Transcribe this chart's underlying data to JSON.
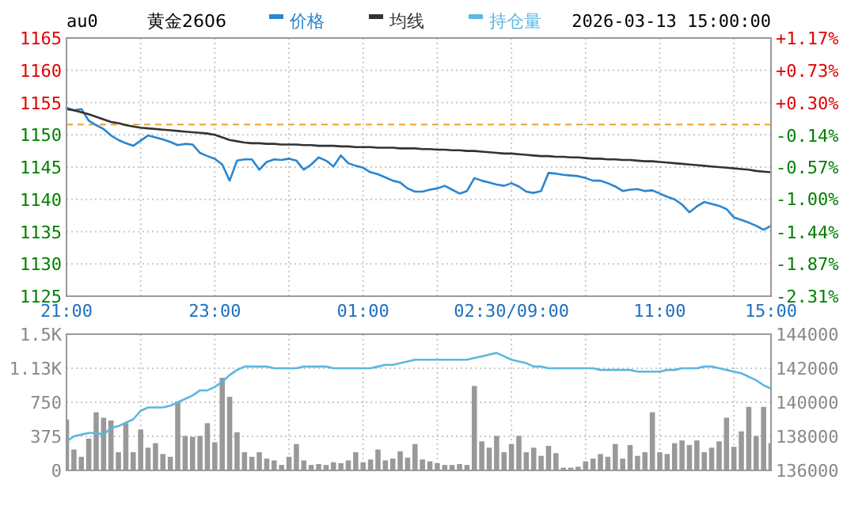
{
  "chart_data": [
    {
      "type": "line",
      "title": "黄金2606",
      "annotations": [
        "au0",
        "2026-03-13 15:00:00"
      ],
      "legend": "top",
      "grid": true,
      "categories": [
        "21:00",
        null,
        null,
        null,
        null,
        null,
        null,
        null,
        null,
        null,
        null,
        null,
        null,
        null,
        null,
        null,
        null,
        null,
        null,
        null,
        "23:00",
        null,
        null,
        null,
        null,
        null,
        null,
        null,
        null,
        null,
        null,
        null,
        null,
        null,
        null,
        null,
        null,
        null,
        null,
        null,
        "01:00",
        null,
        null,
        null,
        null,
        null,
        null,
        null,
        null,
        null,
        null,
        null,
        null,
        null,
        null,
        null,
        null,
        null,
        null,
        null,
        "02:30/09:00",
        null,
        null,
        null,
        null,
        null,
        null,
        null,
        null,
        null,
        null,
        null,
        null,
        null,
        null,
        null,
        null,
        null,
        null,
        null,
        "11:00",
        null,
        null,
        null,
        null,
        null,
        null,
        null,
        null,
        null,
        null,
        null,
        null,
        null,
        null,
        "15:00"
      ],
      "ylim": [
        1125,
        1165
      ],
      "yticks": [
        1125,
        1130,
        1135,
        1140,
        1145,
        1150,
        1155,
        1160,
        1165
      ],
      "y2lim": [
        -2.31,
        1.17
      ],
      "y2ticks": [
        {
          "value": -2.31,
          "label": "-2.31%"
        },
        {
          "value": -1.87,
          "label": "-1.87%"
        },
        {
          "value": -1.44,
          "label": "-1.44%"
        },
        {
          "value": -1.0,
          "label": "-1.00%"
        },
        {
          "value": -0.57,
          "label": "-0.57%"
        },
        {
          "value": -0.14,
          "label": "-0.14%"
        },
        {
          "value": 0.3,
          "label": "+0.30%"
        },
        {
          "value": 0.73,
          "label": "+0.73%"
        },
        {
          "value": 1.17,
          "label": "+1.17%"
        }
      ],
      "ref_lines": [
        {
          "axis": "y",
          "value": 1151.6,
          "color": "#f0a030",
          "line_style": "dashed"
        }
      ],
      "series": [
        {
          "name": "价格",
          "color": "#2a86d0",
          "values": [
            1154.2,
            1153.8,
            1154.0,
            1152.2,
            1151.5,
            1150.9,
            1149.9,
            1149.2,
            1148.7,
            1148.3,
            1149.1,
            1149.9,
            1149.6,
            1149.3,
            1148.9,
            1148.4,
            1148.6,
            1148.5,
            1147.2,
            1146.7,
            1146.3,
            1145.4,
            1142.9,
            1146.0,
            1146.2,
            1146.2,
            1144.6,
            1145.8,
            1146.2,
            1146.1,
            1146.3,
            1146.0,
            1144.6,
            1145.4,
            1146.5,
            1146.0,
            1145.1,
            1146.8,
            1145.6,
            1145.2,
            1144.9,
            1144.2,
            1143.9,
            1143.4,
            1142.9,
            1142.6,
            1141.7,
            1141.2,
            1141.2,
            1141.5,
            1141.7,
            1142.1,
            1141.5,
            1140.9,
            1141.3,
            1143.3,
            1142.9,
            1142.6,
            1142.3,
            1142.1,
            1142.5,
            1142.0,
            1141.2,
            1141.0,
            1141.3,
            1144.1,
            1144.0,
            1143.8,
            1143.7,
            1143.6,
            1143.3,
            1142.9,
            1142.9,
            1142.5,
            1142.0,
            1141.3,
            1141.5,
            1141.6,
            1141.3,
            1141.4,
            1140.9,
            1140.4,
            1140.0,
            1139.2,
            1138.0,
            1138.9,
            1139.6,
            1139.3,
            1139.0,
            1138.5,
            1137.2,
            1136.8,
            1136.4,
            1135.9,
            1135.3,
            1135.9
          ]
        },
        {
          "name": "均线",
          "color": "#333333",
          "values": [
            1154.0,
            1153.8,
            1153.5,
            1153.2,
            1152.8,
            1152.4,
            1152.0,
            1151.8,
            1151.5,
            1151.3,
            1151.1,
            1151.0,
            1150.9,
            1150.8,
            1150.7,
            1150.6,
            1150.5,
            1150.4,
            1150.3,
            1150.2,
            1150.0,
            1149.6,
            1149.2,
            1149.0,
            1148.8,
            1148.7,
            1148.7,
            1148.6,
            1148.6,
            1148.5,
            1148.5,
            1148.5,
            1148.4,
            1148.4,
            1148.3,
            1148.3,
            1148.3,
            1148.2,
            1148.2,
            1148.1,
            1148.1,
            1148.1,
            1148.0,
            1148.0,
            1148.0,
            1147.9,
            1147.9,
            1147.9,
            1147.8,
            1147.8,
            1147.7,
            1147.7,
            1147.6,
            1147.6,
            1147.5,
            1147.5,
            1147.4,
            1147.3,
            1147.2,
            1147.1,
            1147.1,
            1147.0,
            1146.9,
            1146.8,
            1146.7,
            1146.7,
            1146.6,
            1146.6,
            1146.5,
            1146.5,
            1146.4,
            1146.3,
            1146.3,
            1146.2,
            1146.2,
            1146.1,
            1146.1,
            1146.0,
            1145.9,
            1145.9,
            1145.8,
            1145.7,
            1145.6,
            1145.5,
            1145.4,
            1145.3,
            1145.2,
            1145.1,
            1145.0,
            1144.9,
            1144.8,
            1144.7,
            1144.6,
            1144.4,
            1144.3,
            1144.2
          ]
        }
      ]
    },
    {
      "type": "bar",
      "legend": "top",
      "grid": true,
      "tick_labels": "y",
      "categories": [
        null,
        null,
        null,
        null,
        null,
        null,
        null,
        null,
        null,
        null,
        null,
        null,
        null,
        null,
        null,
        null,
        null,
        null,
        null,
        null,
        null,
        null,
        null,
        null,
        null,
        null,
        null,
        null,
        null,
        null,
        null,
        null,
        null,
        null,
        null,
        null,
        null,
        null,
        null,
        null,
        null,
        null,
        null,
        null,
        null,
        null,
        null,
        null,
        null,
        null,
        null,
        null,
        null,
        null,
        null,
        null,
        null,
        null,
        null,
        null,
        null,
        null,
        null,
        null,
        null,
        null,
        null,
        null,
        null,
        null,
        null,
        null,
        null,
        null,
        null,
        null,
        null,
        null,
        null,
        null,
        null,
        null,
        null,
        null,
        null,
        null,
        null,
        null,
        null,
        null,
        null,
        null,
        null,
        null,
        null,
        null
      ],
      "ylim": [
        0,
        1500
      ],
      "yticks": [
        0,
        375,
        750,
        {
          "value": 1125,
          "label": "1.13K"
        },
        {
          "value": 1500,
          "label": "1.5K"
        }
      ],
      "y2lim": [
        136000,
        144000
      ],
      "y2ticks": [
        136000,
        138000,
        140000,
        142000,
        144000
      ],
      "series": [
        {
          "color": "#999999",
          "values": [
            560,
            230,
            150,
            350,
            640,
            580,
            550,
            200,
            520,
            200,
            450,
            250,
            300,
            180,
            150,
            760,
            380,
            370,
            380,
            520,
            310,
            1020,
            810,
            420,
            200,
            150,
            200,
            130,
            110,
            60,
            150,
            290,
            110,
            60,
            70,
            60,
            90,
            80,
            110,
            200,
            90,
            120,
            230,
            110,
            130,
            210,
            140,
            290,
            120,
            100,
            80,
            60,
            60,
            70,
            60,
            930,
            320,
            250,
            380,
            200,
            290,
            380,
            200,
            250,
            160,
            270,
            190,
            30,
            30,
            40,
            100,
            130,
            180,
            150,
            290,
            130,
            280,
            160,
            200,
            640,
            200,
            180,
            300,
            330,
            280,
            330,
            200,
            250,
            320,
            580,
            260,
            430,
            700,
            380,
            700,
            300
          ]
        },
        {
          "name": "持仓量",
          "type": "line",
          "axis": "y2",
          "color": "#5bb8e0",
          "values": [
            137700,
            138000,
            138100,
            138200,
            138200,
            138100,
            138500,
            138600,
            138800,
            139000,
            139500,
            139700,
            139700,
            139700,
            139800,
            140000,
            140200,
            140400,
            140700,
            140700,
            140900,
            141200,
            141600,
            141900,
            142100,
            142100,
            142100,
            142100,
            142000,
            142000,
            142000,
            142000,
            142100,
            142100,
            142100,
            142100,
            142000,
            142000,
            142000,
            142000,
            142000,
            142000,
            142100,
            142200,
            142200,
            142300,
            142400,
            142500,
            142500,
            142500,
            142500,
            142500,
            142500,
            142500,
            142500,
            142600,
            142700,
            142800,
            142900,
            142700,
            142500,
            142400,
            142300,
            142100,
            142100,
            142000,
            142000,
            142000,
            142000,
            142000,
            142000,
            142000,
            141900,
            141900,
            141900,
            141900,
            141900,
            141800,
            141800,
            141800,
            141800,
            141900,
            141900,
            142000,
            142000,
            142000,
            142100,
            142100,
            142000,
            141900,
            141800,
            141700,
            141500,
            141300,
            141000,
            140800
          ]
        }
      ]
    }
  ]
}
